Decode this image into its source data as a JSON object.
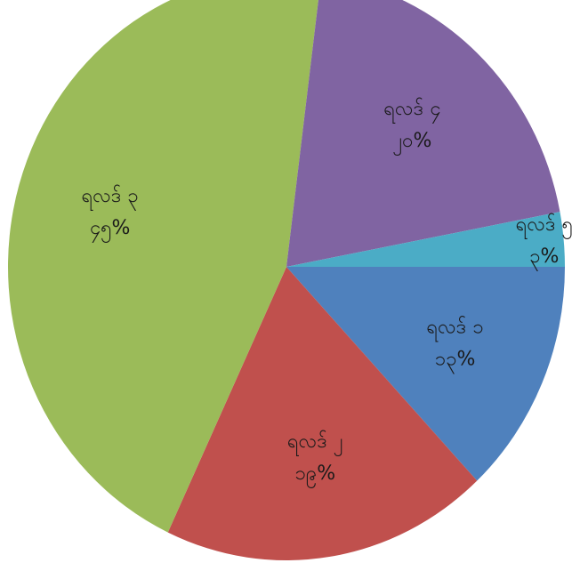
{
  "chart_data": {
    "type": "pie",
    "categories": [
      "ရလဒ် ၁",
      "ရလဒ် ၂",
      "ရလဒ် ၃",
      "ရလဒ် ၄",
      "ရလဒ် ၅"
    ],
    "values": [
      13,
      19,
      45,
      20,
      3
    ],
    "value_labels": [
      "၁၃%",
      "၁၉%",
      "၄၅%",
      "၂၀%",
      "၃%"
    ],
    "colors": [
      "#4f81bd",
      "#c0504d",
      "#9bbb59",
      "#8064a2",
      "#4bacc6"
    ]
  }
}
